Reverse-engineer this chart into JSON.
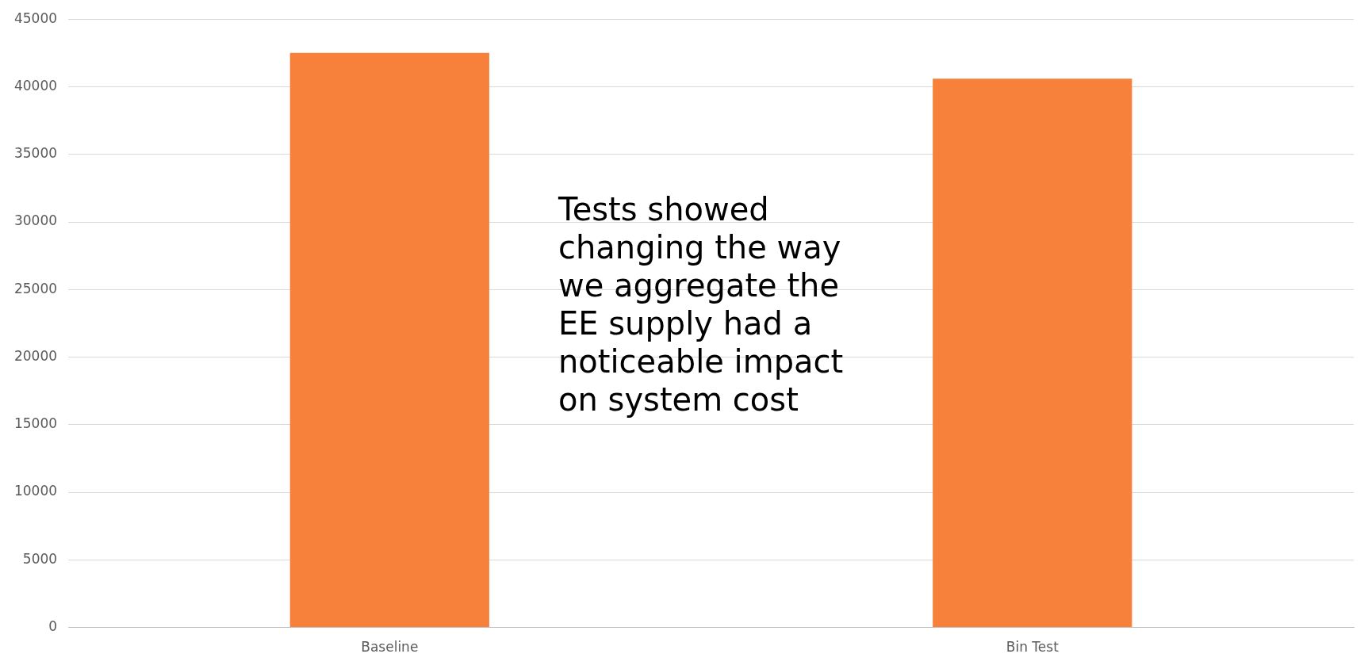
{
  "chart_data": {
    "type": "bar",
    "categories": [
      "Baseline",
      "Bin Test"
    ],
    "values": [
      42500,
      40600
    ],
    "color": "#f7813a",
    "ylim": [
      0,
      45000
    ],
    "yticks": [
      0,
      5000,
      10000,
      15000,
      20000,
      25000,
      30000,
      35000,
      40000,
      45000
    ],
    "grid": "y",
    "legend": false,
    "annotations": [
      "Tests showed changing the way we aggregate the EE supply had a noticeable impact on system cost"
    ]
  }
}
